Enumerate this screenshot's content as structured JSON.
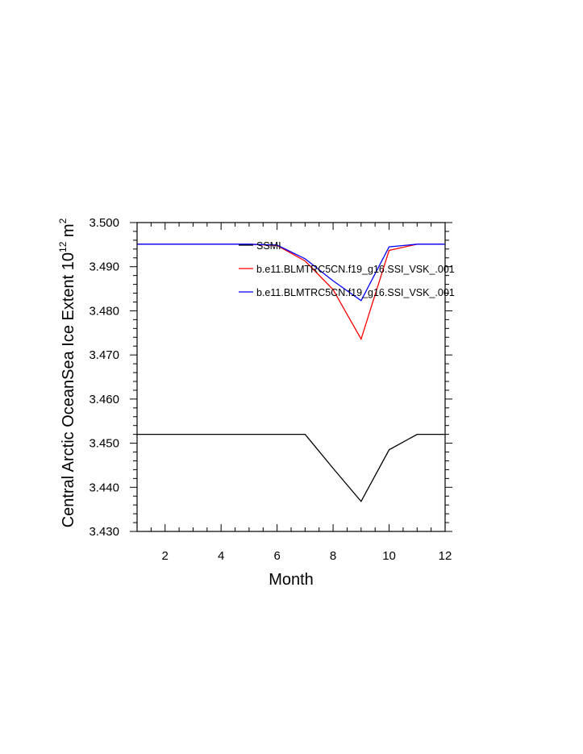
{
  "chart_data": {
    "type": "line",
    "title": "",
    "xlabel": "Month",
    "ylabel_main": "Central Arctic OceanSea Ice Extent 10",
    "ylabel_exp": "12",
    "ylabel_unit": " m",
    "ylabel_unit_exp": "2",
    "xlim": [
      1,
      12
    ],
    "ylim": [
      3.43,
      3.5
    ],
    "x_ticks": [
      2,
      4,
      6,
      8,
      10,
      12
    ],
    "x_tick_labels": [
      "2",
      "4",
      "6",
      "8",
      "10",
      "12"
    ],
    "y_ticks": [
      3.43,
      3.44,
      3.45,
      3.46,
      3.47,
      3.48,
      3.49,
      3.5
    ],
    "y_tick_labels": [
      "3.430",
      "3.440",
      "3.450",
      "3.460",
      "3.470",
      "3.480",
      "3.490",
      "3.500"
    ],
    "grid": false,
    "legend_position": "top-right",
    "x": [
      1,
      2,
      3,
      4,
      5,
      6,
      7,
      8,
      9,
      10,
      11,
      12
    ],
    "series": [
      {
        "name": "SSMI",
        "color": "#000000",
        "values": [
          3.452,
          3.452,
          3.452,
          3.452,
          3.452,
          3.452,
          3.452,
          3.4443,
          3.4368,
          3.4485,
          3.452,
          3.452
        ]
      },
      {
        "name": "b.e11.BLMTRC5CN.f19_g16.SSI_VSK_.001",
        "color": "#ff0000",
        "values": [
          3.4951,
          3.4951,
          3.4951,
          3.4951,
          3.4951,
          3.4948,
          3.4913,
          3.4848,
          3.4736,
          3.4937,
          3.4951,
          3.4951
        ]
      },
      {
        "name": "b.e11.BLMTRC5CN.f19_g16.SSI_VSK_.001",
        "color": "#0000ff",
        "values": [
          3.4951,
          3.4951,
          3.4951,
          3.4951,
          3.4951,
          3.4949,
          3.4918,
          3.4868,
          3.4823,
          3.4945,
          3.4951,
          3.4951
        ]
      }
    ]
  }
}
